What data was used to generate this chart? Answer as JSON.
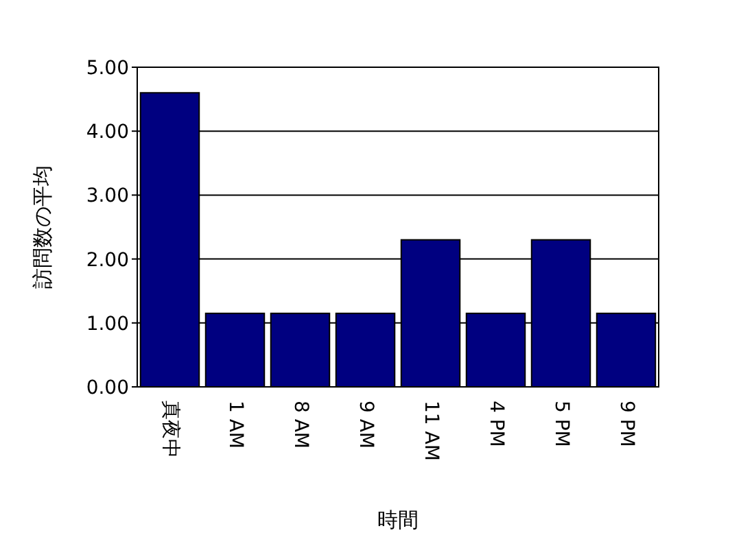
{
  "chart_data": {
    "type": "bar",
    "xlabel": "時間",
    "ylabel": "訪問数の平均",
    "categories": [
      "真夜中",
      "1 AM",
      "8 AM",
      "9 AM",
      "11 AM",
      "4 PM",
      "5 PM",
      "9 PM"
    ],
    "values": [
      4.6,
      1.15,
      1.15,
      1.15,
      2.3,
      1.15,
      2.3,
      1.15
    ],
    "color": "#000080",
    "ylim": [
      0,
      5
    ],
    "yticks": [
      {
        "value": 0,
        "label": "0.00"
      },
      {
        "value": 1,
        "label": "1.00"
      },
      {
        "value": 2,
        "label": "2.00"
      },
      {
        "value": 3,
        "label": "3.00"
      },
      {
        "value": 4,
        "label": "4.00"
      },
      {
        "value": 5,
        "label": "5.00"
      }
    ],
    "grid": "y"
  }
}
